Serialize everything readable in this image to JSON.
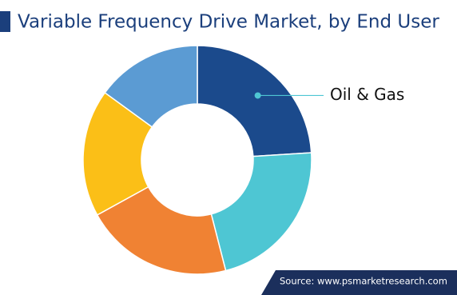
{
  "chart_data": {
    "type": "donut",
    "title": "Variable Frequency Drive Market, by End User",
    "categories": [
      "Oil & Gas",
      null,
      null,
      null,
      null
    ],
    "values": [
      24,
      22,
      21,
      18,
      15
    ],
    "colors": [
      "#1b4a8c",
      "#4ec6d3",
      "#f08233",
      "#fbbf17",
      "#5b9bd3"
    ],
    "source": "Source: www.psmarketresearch.com"
  }
}
